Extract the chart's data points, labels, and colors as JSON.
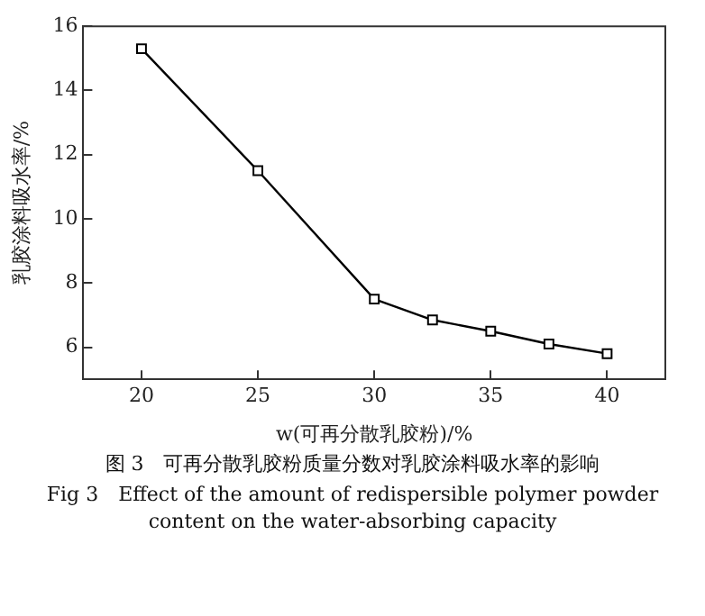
{
  "chart_data": {
    "type": "line",
    "xlabel": "w(可再分散乳胶粉)/%",
    "ylabel": "乳胶涂料吸水率/%",
    "x": [
      20,
      25,
      30,
      32.5,
      35,
      37.5,
      40
    ],
    "series": [
      {
        "color": "#000000",
        "values": [
          15.3,
          11.5,
          7.5,
          6.85,
          6.5,
          6.1,
          5.8
        ]
      }
    ],
    "xlim": [
      17.5,
      42.5
    ],
    "xticks": [
      20,
      25,
      30,
      35,
      40
    ],
    "ylim": [
      5,
      16
    ],
    "yticks": [
      6,
      8,
      10,
      12,
      14,
      16
    ],
    "marker": "square",
    "line_style": "solid",
    "grid": false,
    "legend": false,
    "annotations": [
      "图 3　可再分散乳胶粉质量分数对乳胶涂料吸水率的影响",
      "Fig 3　Effect of the amount of redispersible polymer powder content on the water-absorbing capacity"
    ]
  }
}
